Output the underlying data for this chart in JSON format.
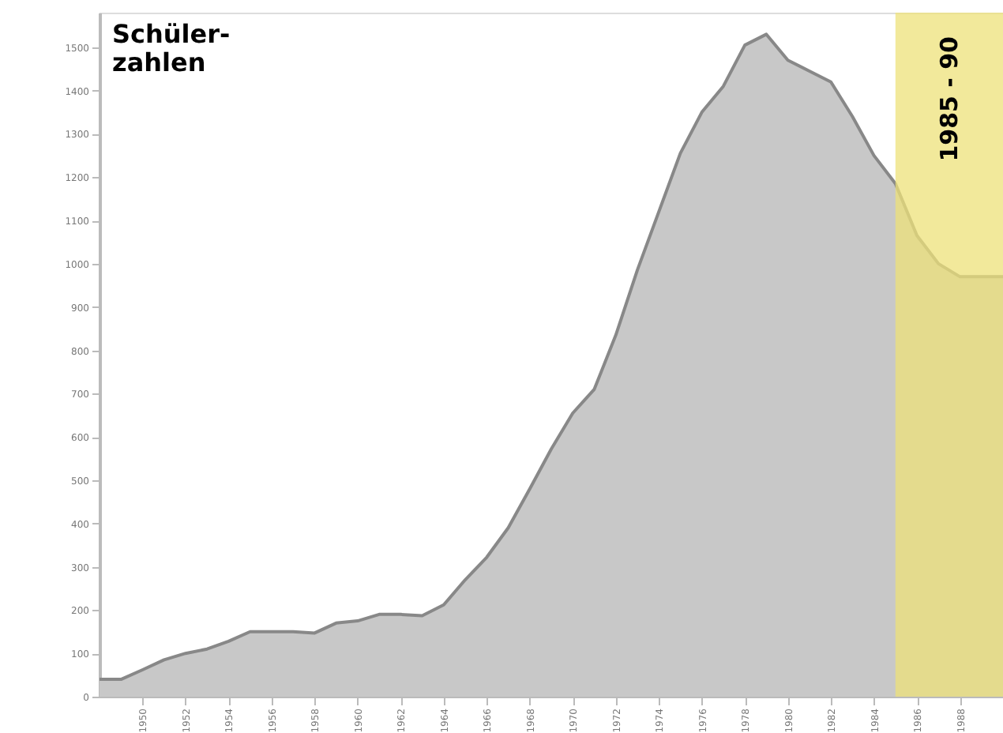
{
  "chart_data": {
    "type": "area",
    "title": "Schüler-\nzahlen",
    "x": [
      1948,
      1949,
      1950,
      1951,
      1952,
      1953,
      1954,
      1955,
      1956,
      1957,
      1958,
      1959,
      1960,
      1961,
      1962,
      1963,
      1964,
      1965,
      1966,
      1967,
      1968,
      1969,
      1970,
      1971,
      1972,
      1973,
      1974,
      1975,
      1976,
      1977,
      1978,
      1979,
      1980,
      1981,
      1982,
      1983,
      1984,
      1985,
      1986,
      1987,
      1988,
      1989,
      1990
    ],
    "series": [
      {
        "color": "#c8c8c8",
        "values": [
          40,
          40,
          62,
          85,
          100,
          110,
          128,
          150,
          150,
          150,
          147,
          170,
          175,
          190,
          190,
          187,
          212,
          270,
          322,
          390,
          480,
          572,
          655,
          710,
          835,
          985,
          1120,
          1255,
          1350,
          1410,
          1505,
          1530,
          1470,
          1445,
          1420,
          1340,
          1250,
          1185,
          1065,
          1000,
          970,
          970,
          970
        ]
      }
    ],
    "xlim": [
      1948,
      1990
    ],
    "xticks": [
      1950,
      1952,
      1954,
      1956,
      1958,
      1960,
      1962,
      1964,
      1966,
      1968,
      1970,
      1972,
      1974,
      1976,
      1978,
      1980,
      1982,
      1984,
      1986,
      1988
    ],
    "ylim": [
      0,
      1580
    ],
    "yticks": [
      0,
      100,
      200,
      300,
      400,
      500,
      600,
      700,
      800,
      900,
      1000,
      1100,
      1200,
      1300,
      1400,
      1500
    ],
    "bands": [
      {
        "axis": "x",
        "from": 1985,
        "to": 1990,
        "label": "1985 - 90",
        "color": "#eee27a"
      }
    ],
    "grid": false
  }
}
